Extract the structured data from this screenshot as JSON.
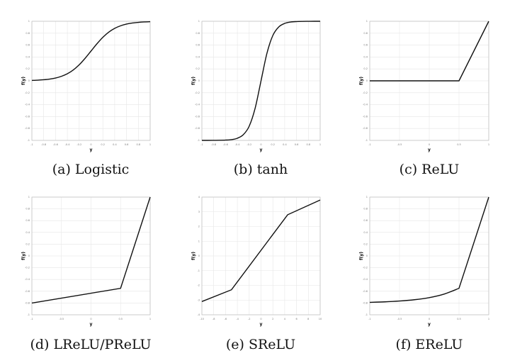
{
  "chart_data": [
    {
      "type": "line",
      "caption": "(a) Logistic",
      "xlabel": "y",
      "ylabel": "f(y)",
      "xlim": [
        -1,
        1
      ],
      "ylim": [
        -1,
        1
      ],
      "xticks": [
        -1,
        -0.8,
        -0.6,
        -0.4,
        -0.2,
        0,
        0.2,
        0.4,
        0.6,
        0.8,
        1
      ],
      "yticks": [
        -1,
        -0.8,
        -0.6,
        -0.4,
        -0.2,
        0,
        0.2,
        0.4,
        0.6,
        0.8,
        1
      ],
      "grid": true,
      "x": [
        -1,
        -0.9,
        -0.8,
        -0.7,
        -0.6,
        -0.5,
        -0.4,
        -0.3,
        -0.2,
        -0.1,
        0,
        0.1,
        0.2,
        0.3,
        0.4,
        0.5,
        0.6,
        0.7,
        0.8,
        0.9,
        1
      ],
      "y": [
        0.007,
        0.011,
        0.018,
        0.029,
        0.047,
        0.076,
        0.119,
        0.182,
        0.269,
        0.378,
        0.5,
        0.622,
        0.731,
        0.818,
        0.881,
        0.924,
        0.953,
        0.971,
        0.982,
        0.989,
        0.993
      ]
    },
    {
      "type": "line",
      "caption": "(b) tanh",
      "xlabel": "y",
      "ylabel": "f(y)",
      "xlim": [
        -1,
        1
      ],
      "ylim": [
        -1,
        1
      ],
      "xticks": [
        -1,
        -0.8,
        -0.6,
        -0.4,
        -0.2,
        0,
        0.2,
        0.4,
        0.6,
        0.8,
        1
      ],
      "yticks": [
        -1,
        -0.8,
        -0.6,
        -0.4,
        -0.2,
        0,
        0.2,
        0.4,
        0.6,
        0.8,
        1
      ],
      "grid": true,
      "x": [
        -1,
        -0.9,
        -0.8,
        -0.7,
        -0.6,
        -0.5,
        -0.4,
        -0.3,
        -0.2,
        -0.1,
        0,
        0.1,
        0.2,
        0.3,
        0.4,
        0.5,
        0.6,
        0.7,
        0.8,
        0.9,
        1
      ],
      "y": [
        -1,
        -1,
        -0.999,
        -0.998,
        -0.995,
        -0.987,
        -0.964,
        -0.905,
        -0.762,
        -0.462,
        0,
        0.462,
        0.762,
        0.905,
        0.964,
        0.987,
        0.995,
        0.998,
        0.999,
        1,
        1
      ]
    },
    {
      "type": "line",
      "caption": "(c) ReLU",
      "xlabel": "y",
      "ylabel": "f(y)",
      "xlim": [
        -1,
        1
      ],
      "ylim": [
        -1,
        1
      ],
      "xticks": [
        -1,
        -0.5,
        0,
        0.5,
        1
      ],
      "yticks": [
        -1,
        -0.8,
        -0.6,
        -0.4,
        -0.2,
        0,
        0.2,
        0.4,
        0.6,
        0.8,
        1
      ],
      "grid": true,
      "x": [
        -1,
        0.5,
        1
      ],
      "y": [
        0,
        0,
        1
      ]
    },
    {
      "type": "line",
      "caption": "(d) LReLU/PReLU",
      "xlabel": "y",
      "ylabel": "f(y)",
      "xlim": [
        -1,
        1
      ],
      "ylim": [
        -1,
        1
      ],
      "xticks": [
        -1,
        -0.5,
        0,
        0.5,
        1
      ],
      "yticks": [
        -1,
        -0.8,
        -0.6,
        -0.4,
        -0.2,
        0,
        0.2,
        0.4,
        0.6,
        0.8,
        1
      ],
      "grid": true,
      "x": [
        -1,
        0.5,
        1
      ],
      "y": [
        -0.8,
        -0.55,
        1
      ]
    },
    {
      "type": "line",
      "caption": "(e) SReLU",
      "xlabel": "y",
      "ylabel": "f(y)",
      "xlim": [
        -10,
        10
      ],
      "ylim": [
        -4,
        4
      ],
      "xticks": [
        -10,
        -8,
        -6,
        -4,
        -2,
        0,
        2,
        4,
        6,
        8,
        10
      ],
      "yticks": [
        -4,
        -3,
        -2,
        -1,
        0,
        1,
        2,
        3,
        4
      ],
      "grid": true,
      "x": [
        -10,
        -5,
        4.5,
        10
      ],
      "y": [
        -3.1,
        -2.3,
        2.8,
        3.8
      ]
    },
    {
      "type": "line",
      "caption": "(f) EReLU",
      "xlabel": "y",
      "ylabel": "f(y)",
      "xlim": [
        -1,
        1
      ],
      "ylim": [
        -1,
        1
      ],
      "xticks": [
        -1,
        -0.5,
        0,
        0.5,
        1
      ],
      "yticks": [
        -1,
        -0.8,
        -0.6,
        -0.4,
        -0.2,
        0,
        0.2,
        0.4,
        0.6,
        0.8,
        1
      ],
      "grid": true,
      "x": [
        -1,
        -0.75,
        -0.5,
        -0.25,
        0,
        0.25,
        0.5,
        1
      ],
      "y": [
        -0.788,
        -0.78,
        -0.766,
        -0.744,
        -0.708,
        -0.648,
        -0.55,
        1
      ]
    }
  ]
}
